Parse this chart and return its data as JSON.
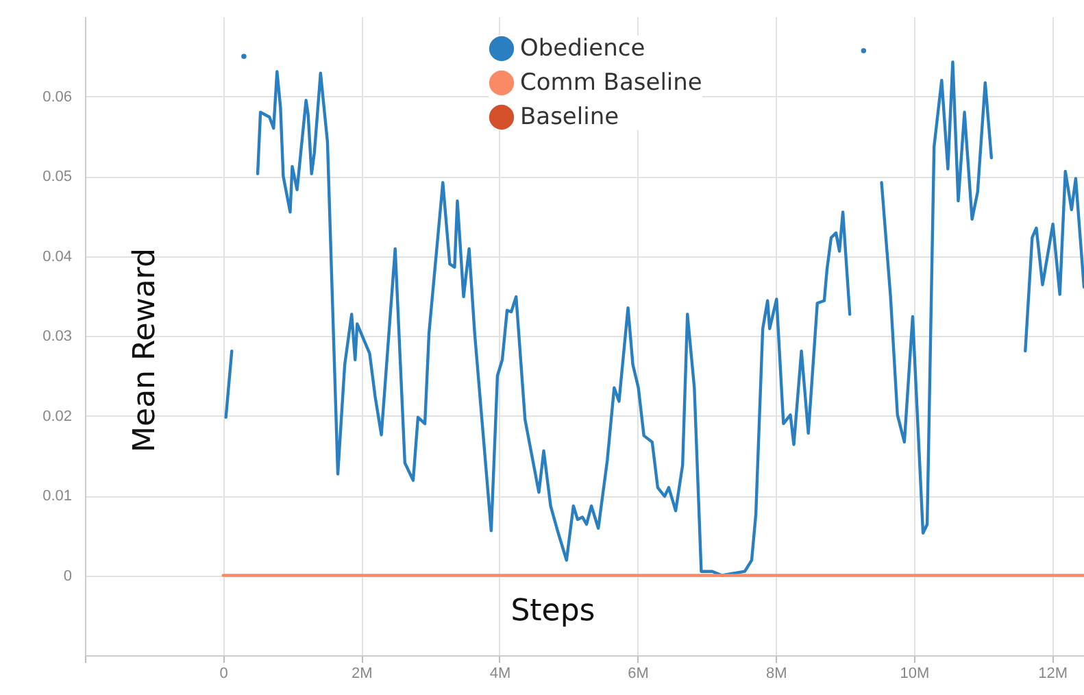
{
  "chart_data": {
    "type": "line",
    "xlabel": "Steps",
    "ylabel": "Mean Reward",
    "xlim": [
      -2000000,
      12460000
    ],
    "xticks": [
      {
        "value": -2000000,
        "label": null
      },
      0,
      {
        "value": 2000000,
        "label": "2M"
      },
      {
        "value": 4000000,
        "label": "4M"
      },
      {
        "value": 6000000,
        "label": "6M"
      },
      {
        "value": 8000000,
        "label": "8M"
      },
      {
        "value": 10000000,
        "label": "10M"
      },
      {
        "value": 12000000,
        "label": "12M"
      }
    ],
    "ylim": [
      -0.01,
      0.07
    ],
    "yticks": [
      0,
      0.01,
      0.02,
      0.03,
      0.04,
      0.05,
      0.06
    ],
    "grid": true,
    "legend": "top",
    "line_style": "solid",
    "marker": "none",
    "series": [
      {
        "name": "Obedience",
        "color": "#2a7fc0",
        "x": [
          40000,
          125000,
          220000,
          300000,
          350000,
          400000,
          500000,
          540000,
          670000,
          730000,
          780000,
          830000,
          870000,
          970000,
          1000000,
          1070000,
          1200000,
          1230000,
          1280000,
          1320000,
          1410000,
          1510000,
          1660000,
          1760000,
          1860000,
          1910000,
          1940000,
          2120000,
          2200000,
          2290000,
          2490000,
          2630000,
          2750000,
          2820000,
          2920000,
          2980000,
          3180000,
          3280000,
          3350000,
          3390000,
          3480000,
          3560000,
          3640000,
          3880000,
          3970000,
          4040000,
          4110000,
          4170000,
          4240000,
          4370000,
          4570000,
          4640000,
          4740000,
          4840000,
          4970000,
          5070000,
          5130000,
          5200000,
          5260000,
          5330000,
          5430000,
          5560000,
          5660000,
          5730000,
          5860000,
          5930000,
          6010000,
          6090000,
          6210000,
          6290000,
          6390000,
          6450000,
          6550000,
          6650000,
          6720000,
          6820000,
          6920000,
          7080000,
          7220000,
          7550000,
          7650000,
          7710000,
          7810000,
          7880000,
          7910000,
          8010000,
          8110000,
          8210000,
          8260000,
          8370000,
          8470000,
          8600000,
          8700000,
          8740000,
          8800000,
          8870000,
          8920000,
          8970000,
          9070000,
          9200000,
          9270000,
          9300000,
          9430000,
          9530000,
          9660000,
          9760000,
          9860000,
          9980000,
          10130000,
          10190000,
          10290000,
          10400000,
          10490000,
          10560000,
          10640000,
          10730000,
          10840000,
          10920000,
          11030000,
          11120000,
          11220000,
          11480000,
          11610000,
          11710000,
          11770000,
          11860000,
          12010000,
          12110000,
          12190000,
          12280000,
          12340000,
          12460000
        ],
        "values": [
          0.0198,
          0.0281,
          null,
          0.065,
          null,
          null,
          0.0503,
          0.058,
          0.0574,
          0.056,
          0.0631,
          0.0586,
          0.05,
          0.0455,
          0.0512,
          0.0483,
          0.0595,
          0.0577,
          0.0503,
          0.0529,
          0.0629,
          0.0543,
          0.0127,
          0.0264,
          0.0327,
          0.027,
          0.0315,
          0.0278,
          0.0224,
          0.0176,
          0.0409,
          0.0141,
          0.0119,
          0.0198,
          0.019,
          0.0304,
          0.0492,
          0.039,
          0.0386,
          0.0469,
          0.0349,
          0.0409,
          0.0304,
          0.0056,
          0.025,
          0.027,
          0.0332,
          0.033,
          0.0349,
          0.0195,
          0.0104,
          0.0156,
          0.0087,
          0.0056,
          0.0019,
          0.0087,
          0.007,
          0.0073,
          0.0064,
          0.0087,
          0.0059,
          0.0144,
          0.0235,
          0.0218,
          0.0335,
          0.0264,
          0.0235,
          0.0175,
          0.0167,
          0.011,
          0.0099,
          0.011,
          0.0081,
          0.0138,
          0.0327,
          0.0235,
          0.0005,
          0.0005,
          0,
          0.0005,
          0.0019,
          0.0076,
          0.0309,
          0.0344,
          0.0309,
          0.0346,
          0.019,
          0.0201,
          0.0164,
          0.0281,
          0.0178,
          0.0341,
          0.0344,
          0.0383,
          0.0423,
          0.0429,
          0.0406,
          0.0455,
          0.0327,
          null,
          0.0657,
          null,
          null,
          0.0492,
          0.0349,
          0.0201,
          0.0167,
          0.0324,
          0.0053,
          0.0064,
          0.0537,
          0.062,
          0.0509,
          0.0643,
          0.0469,
          0.058,
          0.0446,
          0.048,
          0.0617,
          0.0523,
          null,
          null,
          0.0281,
          0.0423,
          0.0435,
          0.0364,
          0.044,
          0.0352,
          0.0506,
          0.0458,
          0.0497,
          0.0361
        ]
      },
      {
        "name": "Comm Baseline",
        "color": "#f98a65",
        "x": [
          0,
          12460000
        ],
        "values": [
          0,
          0
        ]
      },
      {
        "name": "Baseline",
        "color": "#d4502a"
      }
    ]
  }
}
